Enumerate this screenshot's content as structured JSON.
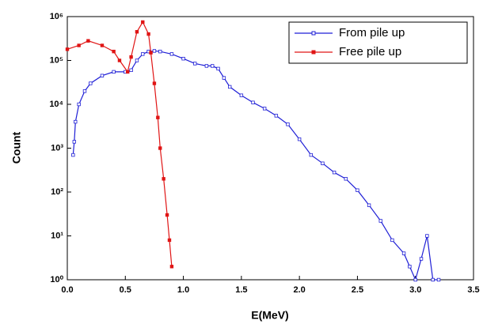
{
  "chart_data": {
    "type": "line",
    "x_label": "E(MeV)",
    "y_label": "Count",
    "log_y": true,
    "legend": "upper right",
    "xlim": [
      0,
      3.5
    ],
    "ylim": [
      1,
      1000000
    ],
    "xticks": [
      {
        "value": 0,
        "label": "0.0"
      },
      0.5,
      {
        "value": 1,
        "label": "1.0"
      },
      1.5,
      {
        "value": 2,
        "label": "2.0"
      },
      2.5,
      {
        "value": 3,
        "label": "3.0"
      },
      3.5
    ],
    "yticks": [
      {
        "value": 1,
        "label": "10⁰"
      },
      {
        "value": 10,
        "label": "10¹"
      },
      {
        "value": 100,
        "label": "10²"
      },
      {
        "value": 1000,
        "label": "10³"
      },
      {
        "value": 10000,
        "label": "10⁴"
      },
      {
        "value": 100000,
        "label": "10⁵"
      },
      {
        "value": 1000000,
        "label": "10⁶"
      }
    ],
    "series": [
      {
        "name": "From pile up",
        "color": "#1f1fd6",
        "marker": "open-square",
        "x": [
          0.05,
          0.06,
          0.07,
          0.1,
          0.15,
          0.2,
          0.3,
          0.4,
          0.5,
          0.55,
          0.6,
          0.65,
          0.7,
          0.75,
          0.8,
          0.9,
          1.0,
          1.1,
          1.2,
          1.25,
          1.3,
          1.35,
          1.4,
          1.5,
          1.6,
          1.7,
          1.8,
          1.9,
          2.0,
          2.1,
          2.2,
          2.3,
          2.4,
          2.5,
          2.6,
          2.7,
          2.8,
          2.9,
          2.95,
          3.0,
          3.05,
          3.1,
          3.15,
          3.2
        ],
        "values": [
          700,
          1400,
          4000,
          10000,
          20000,
          30000,
          45000,
          55000,
          55000,
          60000,
          100000,
          140000,
          160000,
          165000,
          160000,
          140000,
          110000,
          85000,
          75000,
          75000,
          65000,
          40000,
          25000,
          16000,
          11000,
          8000,
          5500,
          3500,
          1600,
          700,
          450,
          280,
          200,
          110,
          50,
          22,
          8,
          4,
          2,
          1,
          3,
          10,
          1,
          1
        ]
      },
      {
        "name": "Free pile up",
        "color": "#e01515",
        "marker": "filled-square",
        "x": [
          0,
          0.1,
          0.18,
          0.3,
          0.4,
          0.45,
          0.52,
          0.55,
          0.6,
          0.65,
          0.7,
          0.72,
          0.75,
          0.78,
          0.8,
          0.83,
          0.86,
          0.88,
          0.9
        ],
        "values": [
          180000,
          220000,
          280000,
          220000,
          160000,
          100000,
          55000,
          120000,
          450000,
          750000,
          400000,
          150000,
          30000,
          5000,
          1000,
          200,
          30,
          8,
          2
        ]
      }
    ]
  }
}
